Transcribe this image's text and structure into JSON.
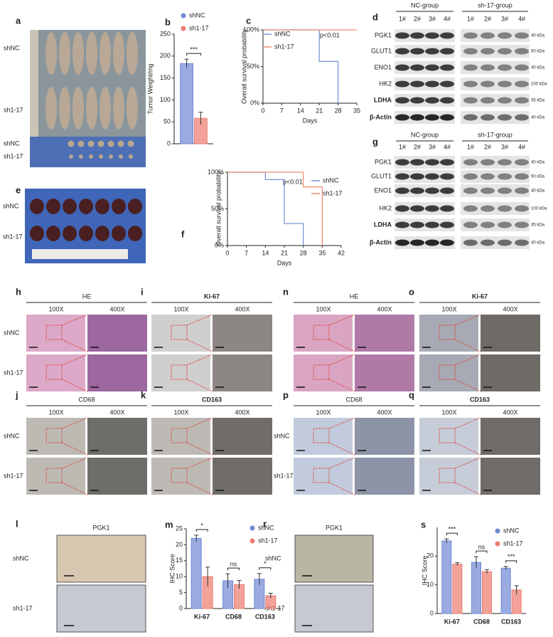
{
  "figure": {
    "a": {
      "label": "a",
      "rows": [
        "shNC",
        "sh1-17",
        "shNC",
        "sh1-17"
      ]
    },
    "d": {
      "label": "d",
      "groups": [
        "NC-group",
        "sh-17-group"
      ],
      "lanes": [
        "1#",
        "2#",
        "3#",
        "4#",
        "1#",
        "2#",
        "3#",
        "4#"
      ],
      "proteins": [
        "PGK1",
        "GLUT1",
        "ENO1",
        "HK2",
        "LDHA",
        "β-Actin"
      ],
      "sizes": [
        "40 kDa",
        "50 kDa",
        "40 kDa",
        "100 kDa",
        "35 kDa",
        "40 kDa"
      ]
    },
    "g": {
      "label": "g",
      "groups": [
        "NC-group",
        "sh-17-group"
      ],
      "lanes": [
        "1#",
        "2#",
        "3#",
        "4#",
        "1#",
        "2#",
        "3#",
        "4#"
      ],
      "proteins": [
        "PGK1",
        "GLUT1",
        "ENO1",
        "HK2",
        "LDHA",
        "β-Actin"
      ],
      "sizes": [
        "40 kDa",
        "50 kDa",
        "40 kDa",
        "100 kDa",
        "35 kDa",
        "40 kDa"
      ]
    },
    "e": {
      "label": "e",
      "rows": [
        "shNC",
        "sh1-17"
      ]
    },
    "ihc": [
      {
        "label": "h",
        "title": "HE",
        "columns": [
          "100X",
          "400X"
        ],
        "rows": [
          "shNC",
          "sh1-17"
        ]
      },
      {
        "label": "i",
        "title": "Ki-67",
        "columns": [
          "100X",
          "400X"
        ]
      },
      {
        "label": "n",
        "title": "HE",
        "columns": [
          "100X",
          "400X"
        ]
      },
      {
        "label": "o",
        "title": "Ki-67",
        "columns": [
          "100X",
          "400X"
        ]
      },
      {
        "label": "j",
        "title": "CD68",
        "columns": [
          "100X",
          "400X"
        ],
        "rows": [
          "shNC",
          "sh1-17"
        ]
      },
      {
        "label": "k",
        "title": "CD163",
        "columns": [
          "100X",
          "400X"
        ]
      },
      {
        "label": "p",
        "title": "CD68",
        "columns": [
          "100X",
          "400X"
        ],
        "rows": [
          "shNC",
          "sh1-17"
        ]
      },
      {
        "label": "q",
        "title": "CD163",
        "columns": [
          "100X",
          "400X"
        ]
      }
    ],
    "pgk": [
      {
        "label": "l",
        "title": "PGK1",
        "rows": [
          "shNC",
          "sh1-17"
        ]
      },
      {
        "label": "r",
        "title": "PGK1",
        "rows": [
          "shNC",
          "sh1-17"
        ]
      }
    ]
  },
  "chart_data": [
    {
      "type": "bar",
      "panel_label": "b",
      "y_label": "Tumor Weight/mg",
      "series": [
        {
          "name": "shNC",
          "color": "#6f88d4",
          "values": [
            183
          ],
          "errors": [
            10
          ]
        },
        {
          "name": "sh1-17",
          "color": "#ec7b6d",
          "values": [
            58
          ],
          "errors": [
            14
          ]
        }
      ],
      "significance": [
        "***"
      ],
      "ylim": [
        0,
        250
      ],
      "yticks": [
        0,
        50,
        100,
        150,
        200,
        250
      ]
    },
    {
      "type": "line",
      "panel_label": "c",
      "y_label": "Overall survival probability",
      "x_label": "Days",
      "annotation": "p<0.01",
      "series": [
        {
          "name": "shNC",
          "color": "#7b96d6",
          "x": [
            0,
            21,
            21,
            28,
            28
          ],
          "values": [
            100,
            100,
            57,
            57,
            0
          ]
        },
        {
          "name": "sh1-17",
          "color": "#f08c70",
          "x": [
            0,
            35
          ],
          "values": [
            100,
            100
          ]
        }
      ],
      "xlim": [
        0,
        35
      ],
      "xticks": [
        0,
        7,
        14,
        21,
        28,
        35
      ],
      "ylim": [
        0,
        100
      ],
      "yticks": [
        {
          "value": 0,
          "label": "0%"
        },
        {
          "value": 50,
          "label": "50%"
        },
        {
          "value": 100,
          "label": "100%"
        }
      ]
    },
    {
      "type": "line",
      "panel_label": "f",
      "y_label": "Overall survival probability",
      "x_label": "Days",
      "annotation": "p<0.01",
      "series": [
        {
          "name": "shNC",
          "color": "#7b96d6",
          "x": [
            0,
            14,
            14,
            21,
            21,
            28,
            28
          ],
          "values": [
            100,
            100,
            90,
            90,
            30,
            30,
            0
          ]
        },
        {
          "name": "sh1-17",
          "color": "#f08c70",
          "x": [
            0,
            28,
            28,
            35,
            35
          ],
          "values": [
            100,
            100,
            80,
            80,
            0
          ]
        }
      ],
      "xlim": [
        0,
        42
      ],
      "xticks": [
        0,
        7,
        14,
        21,
        28,
        35,
        42
      ],
      "ylim": [
        0,
        100
      ],
      "yticks": [
        {
          "value": 0,
          "label": "0%"
        },
        {
          "value": 50,
          "label": "50%"
        },
        {
          "value": 100,
          "label": "100%"
        }
      ]
    },
    {
      "type": "bar",
      "panel_label": "m",
      "y_label": "IHC Score",
      "categories": [
        "Ki-67",
        "CD68",
        "CD163"
      ],
      "series": [
        {
          "name": "shNC",
          "color": "#6f88d4",
          "values": [
            22,
            8.7,
            9.2
          ],
          "errors": [
            1,
            2.2,
            1.8
          ]
        },
        {
          "name": "sh1-17",
          "color": "#ec7b6d",
          "values": [
            10,
            7.5,
            4
          ],
          "errors": [
            3,
            1.3,
            0.8
          ]
        }
      ],
      "significance": [
        "*",
        "ns",
        "*"
      ],
      "ylim": [
        0,
        25
      ],
      "yticks": [
        0,
        5,
        10,
        15,
        20,
        25
      ]
    },
    {
      "type": "bar",
      "panel_label": "s",
      "y_label": "IHC Score",
      "categories": [
        "Ki-67",
        "CD68",
        "CD163"
      ],
      "series": [
        {
          "name": "shNC",
          "color": "#6f88d4",
          "values": [
            25.3,
            17.8,
            15.8
          ],
          "errors": [
            0.7,
            2,
            0.6
          ]
        },
        {
          "name": "sh1-17",
          "color": "#ec7b6d",
          "values": [
            17.2,
            14.6,
            8.2
          ],
          "errors": [
            0.5,
            0.7,
            1.5
          ]
        }
      ],
      "significance": [
        "***",
        "ns",
        "***"
      ],
      "ylim": [
        0,
        30
      ],
      "yticks": [
        0,
        10,
        20
      ]
    }
  ]
}
